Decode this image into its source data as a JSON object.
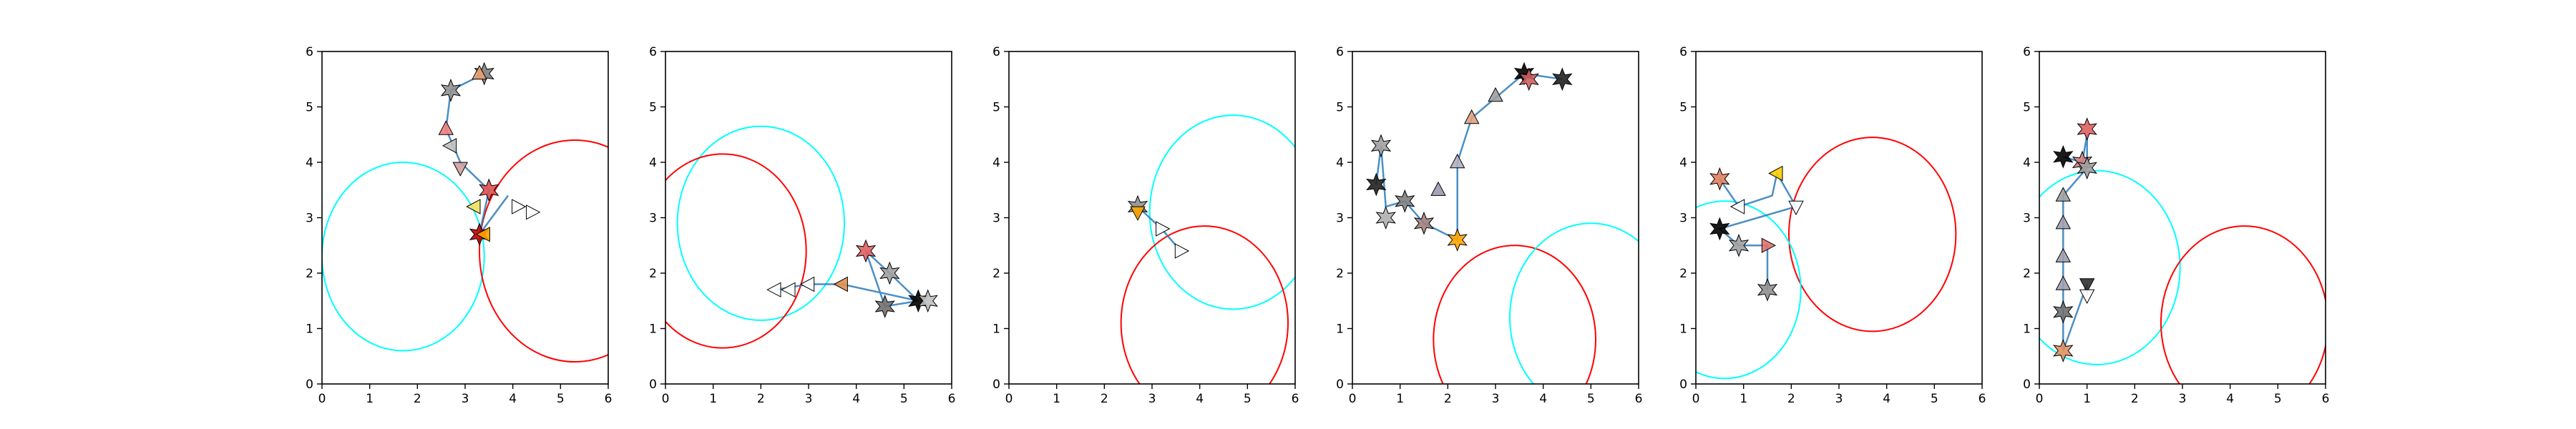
{
  "chart_data": [
    {
      "type": "scatter",
      "xlim": [
        0,
        6
      ],
      "ylim": [
        0,
        6
      ],
      "xticks": [
        "0",
        "1",
        "2",
        "3",
        "4",
        "5",
        "6"
      ],
      "yticks": [
        "0",
        "1",
        "2",
        "3",
        "4",
        "5",
        "6"
      ],
      "circles": [
        {
          "cx": 1.7,
          "cy": 2.3,
          "r": 1.7,
          "color": "#00ffff"
        },
        {
          "cx": 5.3,
          "cy": 2.4,
          "r": 2.0,
          "color": "#ff0000"
        }
      ],
      "path": [
        [
          3.4,
          5.6
        ],
        [
          2.7,
          5.3
        ],
        [
          2.6,
          4.6
        ],
        [
          2.9,
          4.0
        ],
        [
          3.5,
          3.5
        ],
        [
          3.3,
          2.7
        ],
        [
          3.9,
          3.4
        ]
      ],
      "markers": [
        {
          "x": 3.4,
          "y": 5.6,
          "color": "#808080",
          "dir": "star"
        },
        {
          "x": 3.3,
          "y": 5.6,
          "color": "#e8a070",
          "dir": "up"
        },
        {
          "x": 2.7,
          "y": 5.3,
          "color": "#909090",
          "dir": "star"
        },
        {
          "x": 2.6,
          "y": 4.6,
          "color": "#f08080",
          "dir": "up"
        },
        {
          "x": 2.7,
          "y": 4.3,
          "color": "#c0c0c0",
          "dir": "left"
        },
        {
          "x": 2.9,
          "y": 3.9,
          "color": "#d0a0a0",
          "dir": "down"
        },
        {
          "x": 3.2,
          "y": 3.2,
          "color": "#f0e060",
          "dir": "left"
        },
        {
          "x": 3.5,
          "y": 3.5,
          "color": "#e05050",
          "dir": "star"
        },
        {
          "x": 3.3,
          "y": 2.7,
          "color": "#c00000",
          "dir": "star"
        },
        {
          "x": 3.4,
          "y": 2.7,
          "color": "#ffa500",
          "dir": "left"
        },
        {
          "x": 4.1,
          "y": 3.2,
          "color": "#ffffff",
          "dir": "right"
        },
        {
          "x": 4.4,
          "y": 3.1,
          "color": "#ffffff",
          "dir": "right"
        }
      ]
    },
    {
      "type": "scatter",
      "xlim": [
        0,
        6
      ],
      "ylim": [
        0,
        6
      ],
      "xticks": [
        "0",
        "1",
        "2",
        "3",
        "4",
        "5",
        "6"
      ],
      "yticks": [
        "0",
        "1",
        "2",
        "3",
        "4",
        "5",
        "6"
      ],
      "circles": [
        {
          "cx": 2.0,
          "cy": 2.9,
          "r": 1.75,
          "color": "#00ffff"
        },
        {
          "cx": 1.2,
          "cy": 2.4,
          "r": 1.75,
          "color": "#ff0000"
        }
      ],
      "path": [
        [
          5.3,
          1.5
        ],
        [
          4.7,
          2.0
        ],
        [
          4.2,
          2.4
        ],
        [
          4.6,
          1.4
        ],
        [
          5.3,
          1.5
        ],
        [
          3.7,
          1.8
        ],
        [
          3.0,
          1.8
        ],
        [
          2.3,
          1.7
        ]
      ],
      "markers": [
        {
          "x": 5.3,
          "y": 1.5,
          "color": "#000000",
          "dir": "star"
        },
        {
          "x": 5.5,
          "y": 1.5,
          "color": "#c0c0c0",
          "dir": "star"
        },
        {
          "x": 4.7,
          "y": 2.0,
          "color": "#a0a0a0",
          "dir": "star"
        },
        {
          "x": 4.2,
          "y": 2.4,
          "color": "#e06060",
          "dir": "star"
        },
        {
          "x": 4.6,
          "y": 1.4,
          "color": "#707070",
          "dir": "star"
        },
        {
          "x": 3.7,
          "y": 1.8,
          "color": "#e09050",
          "dir": "left"
        },
        {
          "x": 3.0,
          "y": 1.8,
          "color": "#ffffff",
          "dir": "left"
        },
        {
          "x": 2.6,
          "y": 1.7,
          "color": "#ffffff",
          "dir": "left"
        },
        {
          "x": 2.3,
          "y": 1.7,
          "color": "#ffffff",
          "dir": "left"
        }
      ]
    },
    {
      "type": "scatter",
      "xlim": [
        0,
        6
      ],
      "ylim": [
        0,
        6
      ],
      "xticks": [
        "0",
        "1",
        "2",
        "3",
        "4",
        "5",
        "6"
      ],
      "yticks": [
        "0",
        "1",
        "2",
        "3",
        "4",
        "5",
        "6"
      ],
      "circles": [
        {
          "cx": 4.7,
          "cy": 3.1,
          "r": 1.75,
          "color": "#00ffff"
        },
        {
          "cx": 4.1,
          "cy": 1.1,
          "r": 1.75,
          "color": "#ff0000"
        }
      ],
      "path": [
        [
          2.7,
          3.2
        ],
        [
          3.2,
          2.8
        ],
        [
          3.6,
          2.4
        ]
      ],
      "markers": [
        {
          "x": 2.7,
          "y": 3.2,
          "color": "#909090",
          "dir": "star"
        },
        {
          "x": 2.7,
          "y": 3.1,
          "color": "#ffa500",
          "dir": "down"
        },
        {
          "x": 3.2,
          "y": 2.8,
          "color": "#ffffff",
          "dir": "right"
        },
        {
          "x": 3.6,
          "y": 2.4,
          "color": "#ffffff",
          "dir": "right"
        }
      ]
    },
    {
      "type": "scatter",
      "xlim": [
        0,
        6
      ],
      "ylim": [
        0,
        6
      ],
      "xticks": [
        "0",
        "1",
        "2",
        "3",
        "4",
        "5",
        "6"
      ],
      "yticks": [
        "0",
        "1",
        "2",
        "3",
        "4",
        "5",
        "6"
      ],
      "circles": [
        {
          "cx": 3.4,
          "cy": 0.8,
          "r": 1.7,
          "color": "#ff0000"
        },
        {
          "cx": 5.0,
          "cy": 1.2,
          "r": 1.7,
          "color": "#00ffff"
        }
      ],
      "path": [
        [
          0.5,
          3.6
        ],
        [
          0.6,
          4.3
        ],
        [
          0.7,
          3.2
        ],
        [
          1.1,
          3.3
        ],
        [
          1.5,
          2.9
        ],
        [
          2.2,
          2.6
        ],
        [
          2.2,
          4.0
        ],
        [
          2.5,
          4.8
        ],
        [
          3.6,
          5.6
        ],
        [
          4.4,
          5.5
        ]
      ],
      "markers": [
        {
          "x": 0.5,
          "y": 3.6,
          "color": "#202020",
          "dir": "star"
        },
        {
          "x": 0.6,
          "y": 4.3,
          "color": "#a0a0a0",
          "dir": "star"
        },
        {
          "x": 0.7,
          "y": 3.0,
          "color": "#b0b0b0",
          "dir": "star"
        },
        {
          "x": 1.1,
          "y": 3.3,
          "color": "#808080",
          "dir": "star"
        },
        {
          "x": 1.5,
          "y": 2.9,
          "color": "#a08080",
          "dir": "star"
        },
        {
          "x": 1.8,
          "y": 3.5,
          "color": "#9a9ab0",
          "dir": "up"
        },
        {
          "x": 2.2,
          "y": 4.0,
          "color": "#b0b0c0",
          "dir": "up"
        },
        {
          "x": 2.2,
          "y": 2.6,
          "color": "#ffa500",
          "dir": "star"
        },
        {
          "x": 2.5,
          "y": 4.8,
          "color": "#e0a080",
          "dir": "up"
        },
        {
          "x": 3.0,
          "y": 5.2,
          "color": "#a0a0a0",
          "dir": "up"
        },
        {
          "x": 3.6,
          "y": 5.6,
          "color": "#000000",
          "dir": "star"
        },
        {
          "x": 3.7,
          "y": 5.5,
          "color": "#d06060",
          "dir": "star"
        },
        {
          "x": 4.4,
          "y": 5.5,
          "color": "#202020",
          "dir": "star"
        }
      ]
    },
    {
      "type": "scatter",
      "xlim": [
        0,
        6
      ],
      "ylim": [
        0,
        6
      ],
      "xticks": [
        "0",
        "1",
        "2",
        "3",
        "4",
        "5",
        "6"
      ],
      "yticks": [
        "0",
        "1",
        "2",
        "3",
        "4",
        "5",
        "6"
      ],
      "circles": [
        {
          "cx": 3.7,
          "cy": 2.7,
          "r": 1.75,
          "color": "#ff0000"
        },
        {
          "cx": 0.6,
          "cy": 1.7,
          "r": 1.6,
          "color": "#00ffff"
        }
      ],
      "path": [
        [
          0.5,
          3.7
        ],
        [
          0.9,
          3.2
        ],
        [
          1.6,
          3.4
        ],
        [
          1.7,
          3.8
        ],
        [
          2.1,
          3.2
        ],
        [
          0.5,
          2.8
        ],
        [
          0.9,
          2.5
        ],
        [
          1.5,
          2.5
        ],
        [
          1.5,
          1.7
        ]
      ],
      "markers": [
        {
          "x": 0.5,
          "y": 3.7,
          "color": "#e08060",
          "dir": "star"
        },
        {
          "x": 0.5,
          "y": 2.8,
          "color": "#000000",
          "dir": "star"
        },
        {
          "x": 0.9,
          "y": 3.2,
          "color": "#ffffff",
          "dir": "left"
        },
        {
          "x": 0.9,
          "y": 2.5,
          "color": "#a0a0a0",
          "dir": "star"
        },
        {
          "x": 1.5,
          "y": 2.5,
          "color": "#e07070",
          "dir": "right"
        },
        {
          "x": 1.5,
          "y": 1.7,
          "color": "#909090",
          "dir": "star"
        },
        {
          "x": 1.7,
          "y": 3.8,
          "color": "#ffd000",
          "dir": "left"
        },
        {
          "x": 2.1,
          "y": 3.2,
          "color": "#ffffff",
          "dir": "down"
        }
      ]
    },
    {
      "type": "scatter",
      "xlim": [
        0,
        6
      ],
      "ylim": [
        0,
        6
      ],
      "xticks": [
        "0",
        "1",
        "2",
        "3",
        "4",
        "5",
        "6"
      ],
      "yticks": [
        "0",
        "1",
        "2",
        "3",
        "4",
        "5",
        "6"
      ],
      "circles": [
        {
          "cx": 1.2,
          "cy": 2.1,
          "r": 1.75,
          "color": "#00ffff"
        },
        {
          "cx": 4.3,
          "cy": 1.1,
          "r": 1.75,
          "color": "#ff0000"
        }
      ],
      "path": [
        [
          0.5,
          4.1
        ],
        [
          0.9,
          4.0
        ],
        [
          1.0,
          4.5
        ],
        [
          1.0,
          3.9
        ],
        [
          0.5,
          3.4
        ],
        [
          0.5,
          1.3
        ],
        [
          0.5,
          0.6
        ],
        [
          1.0,
          1.8
        ],
        [
          1.0,
          1.6
        ]
      ],
      "markers": [
        {
          "x": 0.5,
          "y": 4.1,
          "color": "#000000",
          "dir": "star"
        },
        {
          "x": 0.5,
          "y": 3.4,
          "color": "#a0a0a0",
          "dir": "up"
        },
        {
          "x": 0.5,
          "y": 2.9,
          "color": "#a0a0b0",
          "dir": "up"
        },
        {
          "x": 0.5,
          "y": 2.3,
          "color": "#a0a0b0",
          "dir": "up"
        },
        {
          "x": 0.5,
          "y": 1.8,
          "color": "#a0a0b0",
          "dir": "up"
        },
        {
          "x": 0.5,
          "y": 1.3,
          "color": "#707070",
          "dir": "star"
        },
        {
          "x": 0.5,
          "y": 0.6,
          "color": "#e09060",
          "dir": "star"
        },
        {
          "x": 0.9,
          "y": 4.0,
          "color": "#d08080",
          "dir": "star"
        },
        {
          "x": 1.0,
          "y": 4.6,
          "color": "#e06060",
          "dir": "star"
        },
        {
          "x": 1.0,
          "y": 3.9,
          "color": "#a0a0a0",
          "dir": "star"
        },
        {
          "x": 1.0,
          "y": 1.8,
          "color": "#303030",
          "dir": "down"
        },
        {
          "x": 1.0,
          "y": 1.6,
          "color": "#ffffff",
          "dir": "down"
        }
      ]
    }
  ]
}
